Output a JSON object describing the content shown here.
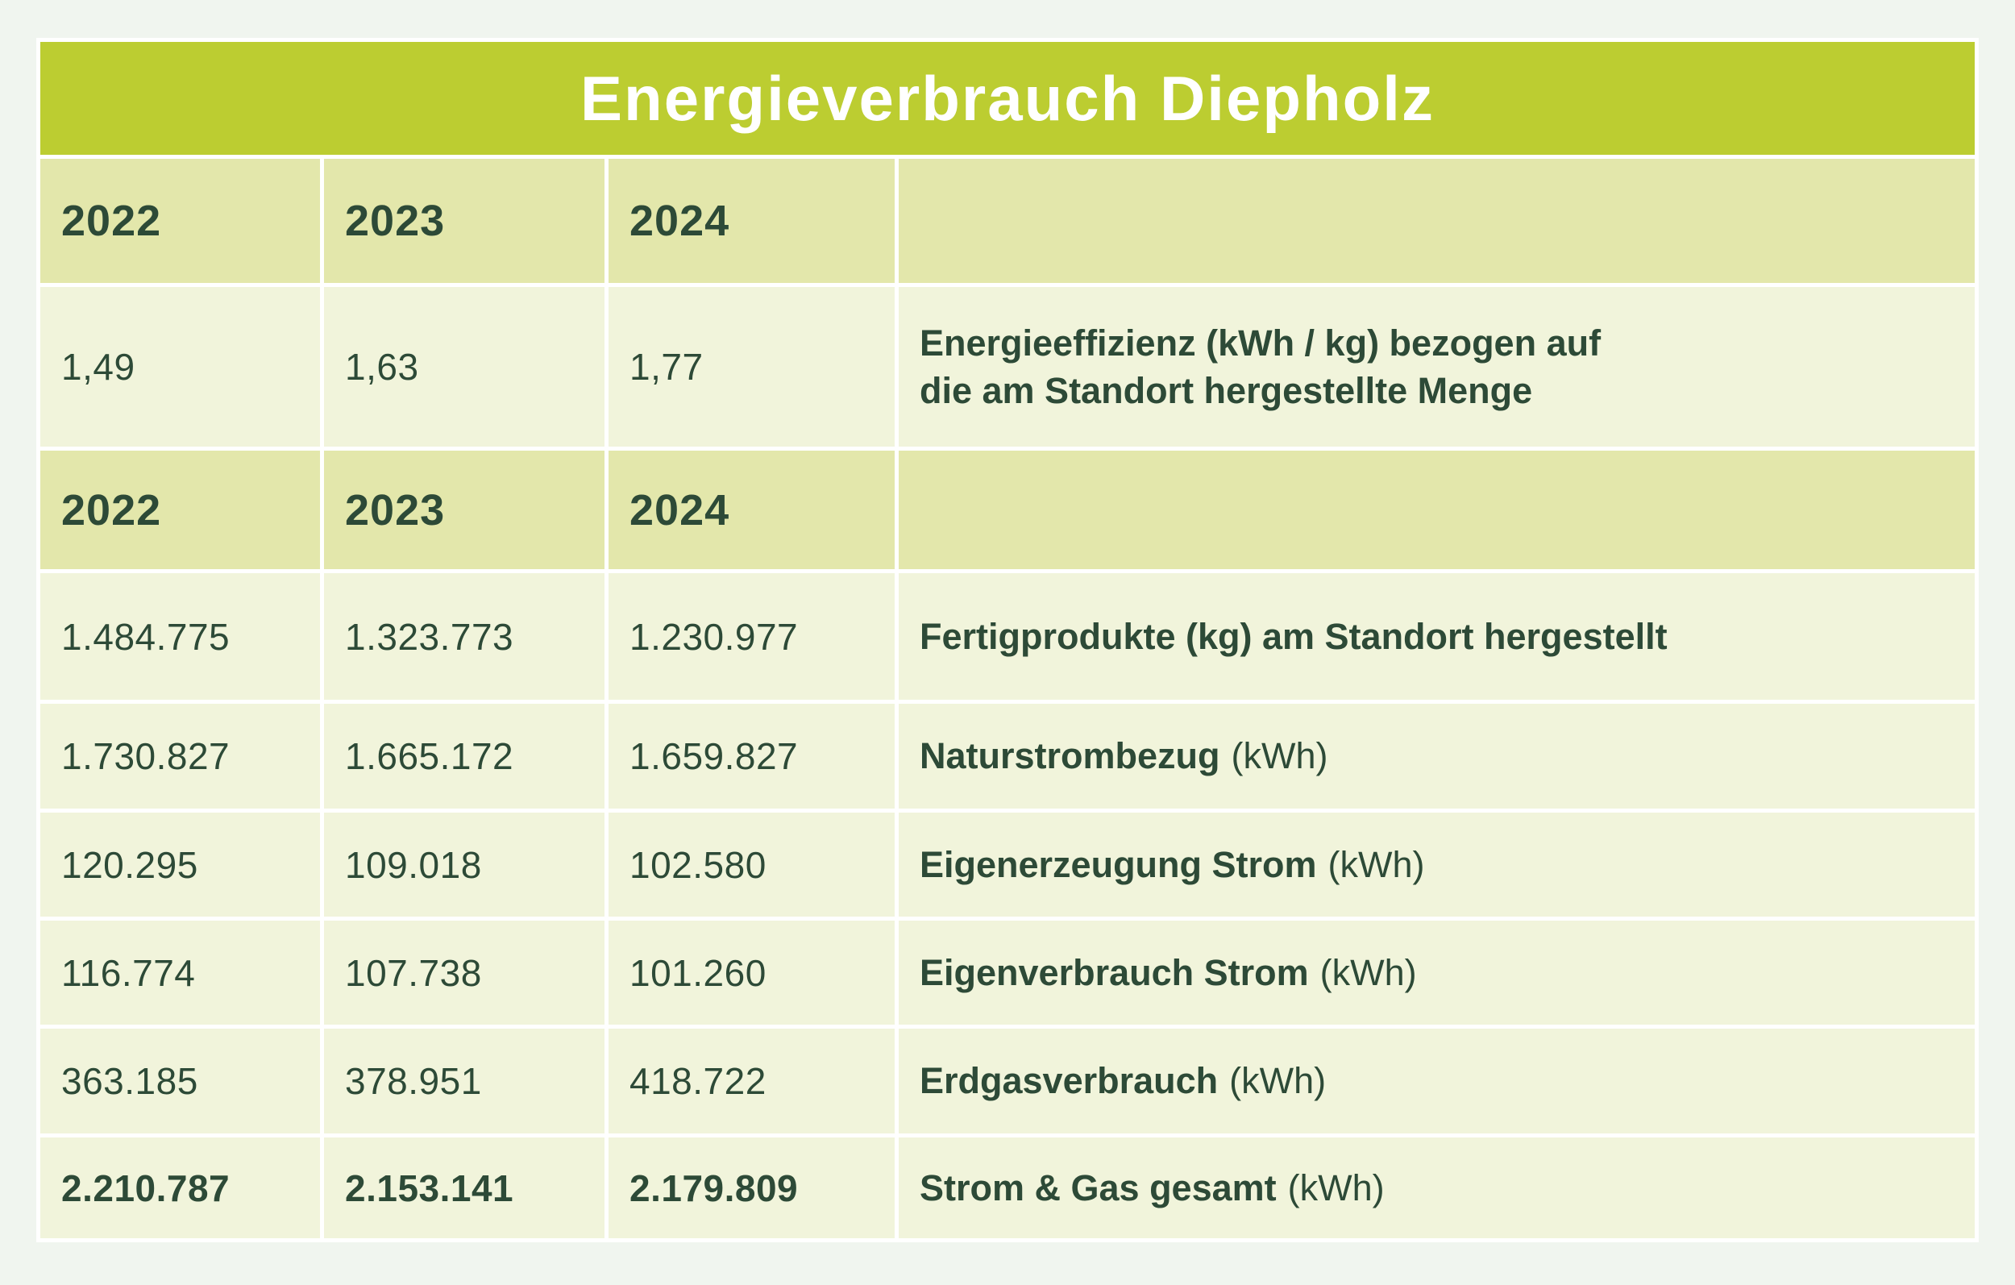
{
  "title": "Energieverbrauch Diepholz",
  "colors": {
    "page_background": "#f0f5ef",
    "title_bar": "#bccd31",
    "header_row": "#e3e7ab",
    "data_row": "#f1f4db",
    "text": "#2d4a37",
    "title_text": "#ffffff",
    "grid_lines": "#ffffff"
  },
  "table": {
    "year_headers": [
      "2022",
      "2023",
      "2024"
    ],
    "rows": [
      {
        "values": [
          "1,49",
          "1,63",
          "1,77"
        ],
        "label_bold": "Energieeffizienz (kWh / kg) bezogen auf\ndie am Standort hergestellte Menge",
        "label_unit": ""
      },
      {
        "values": [
          "1.484.775",
          "1.323.773",
          "1.230.977"
        ],
        "label_bold": "Fertigprodukte (kg) am Standort hergestellt",
        "label_unit": ""
      },
      {
        "values": [
          "1.730.827",
          "1.665.172",
          "1.659.827"
        ],
        "label_bold": "Naturstrombezug",
        "label_unit": "(kWh)"
      },
      {
        "values": [
          "120.295",
          "109.018",
          "102.580"
        ],
        "label_bold": "Eigenerzeugung Strom",
        "label_unit": "(kWh)"
      },
      {
        "values": [
          "116.774",
          "107.738",
          "101.260"
        ],
        "label_bold": "Eigenverbrauch Strom",
        "label_unit": "(kWh)"
      },
      {
        "values": [
          "363.185",
          "378.951",
          "418.722"
        ],
        "label_bold": "Erdgasverbrauch",
        "label_unit": "(kWh)"
      },
      {
        "values": [
          "2.210.787",
          "2.153.141",
          "2.179.809"
        ],
        "label_bold": "Strom & Gas gesamt",
        "label_unit": "(kWh)"
      }
    ]
  },
  "chart_data": {
    "type": "table",
    "title": "Energieverbrauch Diepholz",
    "columns": [
      "2022",
      "2023",
      "2024"
    ],
    "rows": [
      {
        "label": "Energieeffizienz (kWh / kg) bezogen auf die am Standort hergestellte Menge",
        "values": [
          1.49,
          1.63,
          1.77
        ]
      },
      {
        "label": "Fertigprodukte (kg) am Standort hergestellt",
        "values": [
          1484775,
          1323773,
          1230977
        ]
      },
      {
        "label": "Naturstrombezug (kWh)",
        "values": [
          1730827,
          1665172,
          1659827
        ]
      },
      {
        "label": "Eigenerzeugung Strom (kWh)",
        "values": [
          120295,
          109018,
          102580
        ]
      },
      {
        "label": "Eigenverbrauch Strom (kWh)",
        "values": [
          116774,
          107738,
          101260
        ]
      },
      {
        "label": "Erdgasverbrauch (kWh)",
        "values": [
          363185,
          378951,
          418722
        ]
      },
      {
        "label": "Strom & Gas gesamt (kWh)",
        "values": [
          2210787,
          2153141,
          2179809
        ]
      }
    ]
  }
}
